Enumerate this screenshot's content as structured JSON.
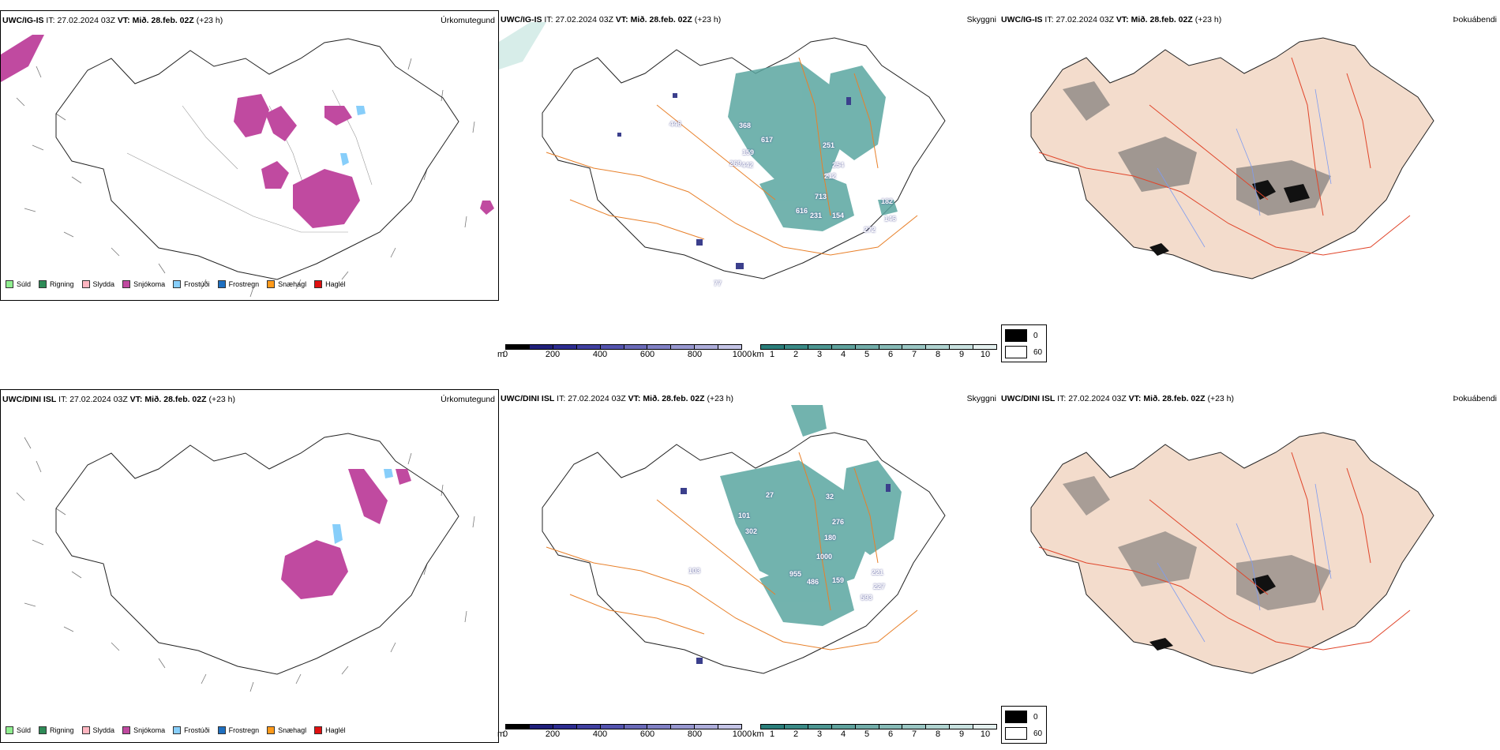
{
  "rows": [
    {
      "model": "UWC/IG-IS",
      "it_label": "IT:",
      "it_value": "27.02.2024 03Z",
      "vt_label": "VT:",
      "vt_value": "Mið. 28.feb. 02Z",
      "lead": "(+23 h)",
      "titles": {
        "precip_type": "Úrkomutegund",
        "cloud": "Skyggni",
        "fog": "Þokuábendi"
      },
      "cloud_labels": [
        "446",
        "368",
        "617",
        "159",
        "269",
        "442",
        "251",
        "254",
        "212",
        "713",
        "616",
        "231",
        "154",
        "182",
        "146",
        "272",
        "77",
        "105"
      ]
    },
    {
      "model": "UWC/DINI ISL",
      "it_label": "IT:",
      "it_value": "27.02.2024 03Z",
      "vt_label": "VT:",
      "vt_value": "Mið. 28.feb. 02Z",
      "lead": "(+23 h)",
      "titles": {
        "precip_type": "Úrkomutegund",
        "cloud": "Skyggni",
        "fog": "Þokuábendi"
      },
      "cloud_labels": [
        "27",
        "101",
        "32",
        "302",
        "276",
        "180",
        "1000",
        "103",
        "955",
        "486",
        "159",
        "221",
        "227",
        "593"
      ]
    }
  ],
  "precip_legend": [
    {
      "label": "Súld",
      "color": "#90ee90"
    },
    {
      "label": "Rigning",
      "color": "#2e8b57"
    },
    {
      "label": "Slydda",
      "color": "#ffb6c1"
    },
    {
      "label": "Snjókoma",
      "color": "#c04aa0"
    },
    {
      "label": "Frostúði",
      "color": "#87cefa"
    },
    {
      "label": "Frostregn",
      "color": "#1e6fc0"
    },
    {
      "label": "Snæhagl",
      "color": "#ff9a1a"
    },
    {
      "label": "Haglél",
      "color": "#e01010"
    }
  ],
  "colorbar_m": {
    "unit": "m",
    "ticks": [
      "0",
      "200",
      "400",
      "600",
      "800",
      "1000"
    ],
    "colors": [
      "#000000",
      "#1f1f7a",
      "#2c2c90",
      "#3f3fa0",
      "#5353ae",
      "#6a6ab8",
      "#8080c4",
      "#9797cf",
      "#adadda",
      "#c4c4e6"
    ]
  },
  "colorbar_km": {
    "unit": "km",
    "ticks": [
      "1",
      "2",
      "3",
      "4",
      "5",
      "6",
      "7",
      "8",
      "9",
      "10"
    ],
    "colors": [
      "#2a7e7a",
      "#3a8a86",
      "#4c9691",
      "#5fa29d",
      "#72ada9",
      "#86bab6",
      "#9ac6c3",
      "#b0d3d0",
      "#c8e1df",
      "#e4f0ef"
    ]
  },
  "fog_legend": [
    {
      "label": "0",
      "color": "#000000"
    },
    {
      "label": "60",
      "color": "#ffffff"
    }
  ]
}
